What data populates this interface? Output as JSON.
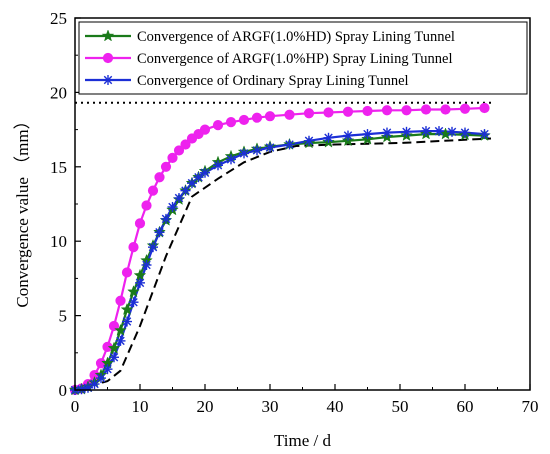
{
  "chart_data": {
    "type": "line",
    "xlabel": "Time / d",
    "ylabel": "Convergence value （mm）",
    "xlim": [
      0,
      70
    ],
    "ylim": [
      0,
      25
    ],
    "xticks": [
      0,
      10,
      20,
      30,
      40,
      50,
      60,
      70
    ],
    "yticks": [
      0,
      5,
      10,
      15,
      20,
      25
    ],
    "grid": false,
    "legend_position": "top-left",
    "series": [
      {
        "name": "Convergence of ARGF(1.0%HD) Spray Lining Tunnel",
        "color": "#1a7a1a",
        "marker": "star",
        "x": [
          0,
          1,
          2,
          3,
          4,
          5,
          6,
          7,
          8,
          9,
          10,
          11,
          12,
          13,
          14,
          15,
          16,
          17,
          18,
          19,
          20,
          22,
          24,
          26,
          28,
          30,
          33,
          36,
          39,
          42,
          45,
          48,
          51,
          54,
          57,
          60,
          63
        ],
        "y": [
          0,
          0.05,
          0.2,
          0.5,
          1.0,
          1.8,
          2.8,
          4.0,
          5.4,
          6.6,
          7.7,
          8.7,
          9.7,
          10.6,
          11.4,
          12.1,
          12.8,
          13.4,
          13.9,
          14.3,
          14.7,
          15.3,
          15.7,
          16.0,
          16.2,
          16.35,
          16.5,
          16.6,
          16.65,
          16.75,
          16.85,
          17.0,
          17.1,
          17.2,
          17.2,
          17.15,
          17.1
        ]
      },
      {
        "name": "Convergence of ARGF(1.0%HP) Spray Lining Tunnel",
        "color": "#ee22ee",
        "marker": "circle",
        "x": [
          0,
          1,
          2,
          3,
          4,
          5,
          6,
          7,
          8,
          9,
          10,
          11,
          12,
          13,
          14,
          15,
          16,
          17,
          18,
          19,
          20,
          22,
          24,
          26,
          28,
          30,
          33,
          36,
          39,
          42,
          45,
          48,
          51,
          54,
          57,
          60,
          63
        ],
        "y": [
          0,
          0.1,
          0.4,
          1.0,
          1.8,
          2.9,
          4.3,
          6.0,
          7.9,
          9.6,
          11.2,
          12.4,
          13.4,
          14.3,
          15.0,
          15.6,
          16.1,
          16.5,
          16.9,
          17.2,
          17.5,
          17.8,
          18.0,
          18.15,
          18.3,
          18.4,
          18.5,
          18.6,
          18.65,
          18.7,
          18.75,
          18.8,
          18.8,
          18.85,
          18.85,
          18.9,
          18.95
        ]
      },
      {
        "name": "Convergence of Ordinary Spray Lining Tunnel",
        "color": "#1c2fd6",
        "marker": "asterisk",
        "x": [
          0,
          1,
          2,
          3,
          4,
          5,
          6,
          7,
          8,
          9,
          10,
          11,
          12,
          13,
          14,
          15,
          16,
          17,
          18,
          19,
          20,
          22,
          24,
          26,
          28,
          30,
          33,
          36,
          39,
          42,
          45,
          48,
          51,
          54,
          56,
          58,
          60,
          63
        ],
        "y": [
          0,
          0.05,
          0.15,
          0.4,
          0.8,
          1.4,
          2.2,
          3.3,
          4.6,
          5.9,
          7.2,
          8.4,
          9.6,
          10.6,
          11.5,
          12.3,
          12.9,
          13.4,
          13.9,
          14.3,
          14.6,
          15.1,
          15.5,
          15.9,
          16.1,
          16.3,
          16.5,
          16.75,
          16.95,
          17.1,
          17.2,
          17.3,
          17.35,
          17.4,
          17.4,
          17.35,
          17.3,
          17.2
        ]
      }
    ],
    "reference_lines": [
      {
        "style": "dashed",
        "color": "#000000",
        "x": [
          0,
          5,
          7,
          10,
          14,
          18,
          22,
          26,
          30,
          34,
          40,
          50,
          64
        ],
        "y": [
          0,
          0.6,
          1.3,
          4.3,
          9.0,
          13.0,
          14.2,
          15.3,
          16.0,
          16.4,
          16.5,
          16.6,
          16.9
        ]
      },
      {
        "style": "dotted",
        "color": "#000000",
        "x": [
          0,
          64
        ],
        "y": [
          19.3,
          19.3
        ]
      }
    ]
  }
}
